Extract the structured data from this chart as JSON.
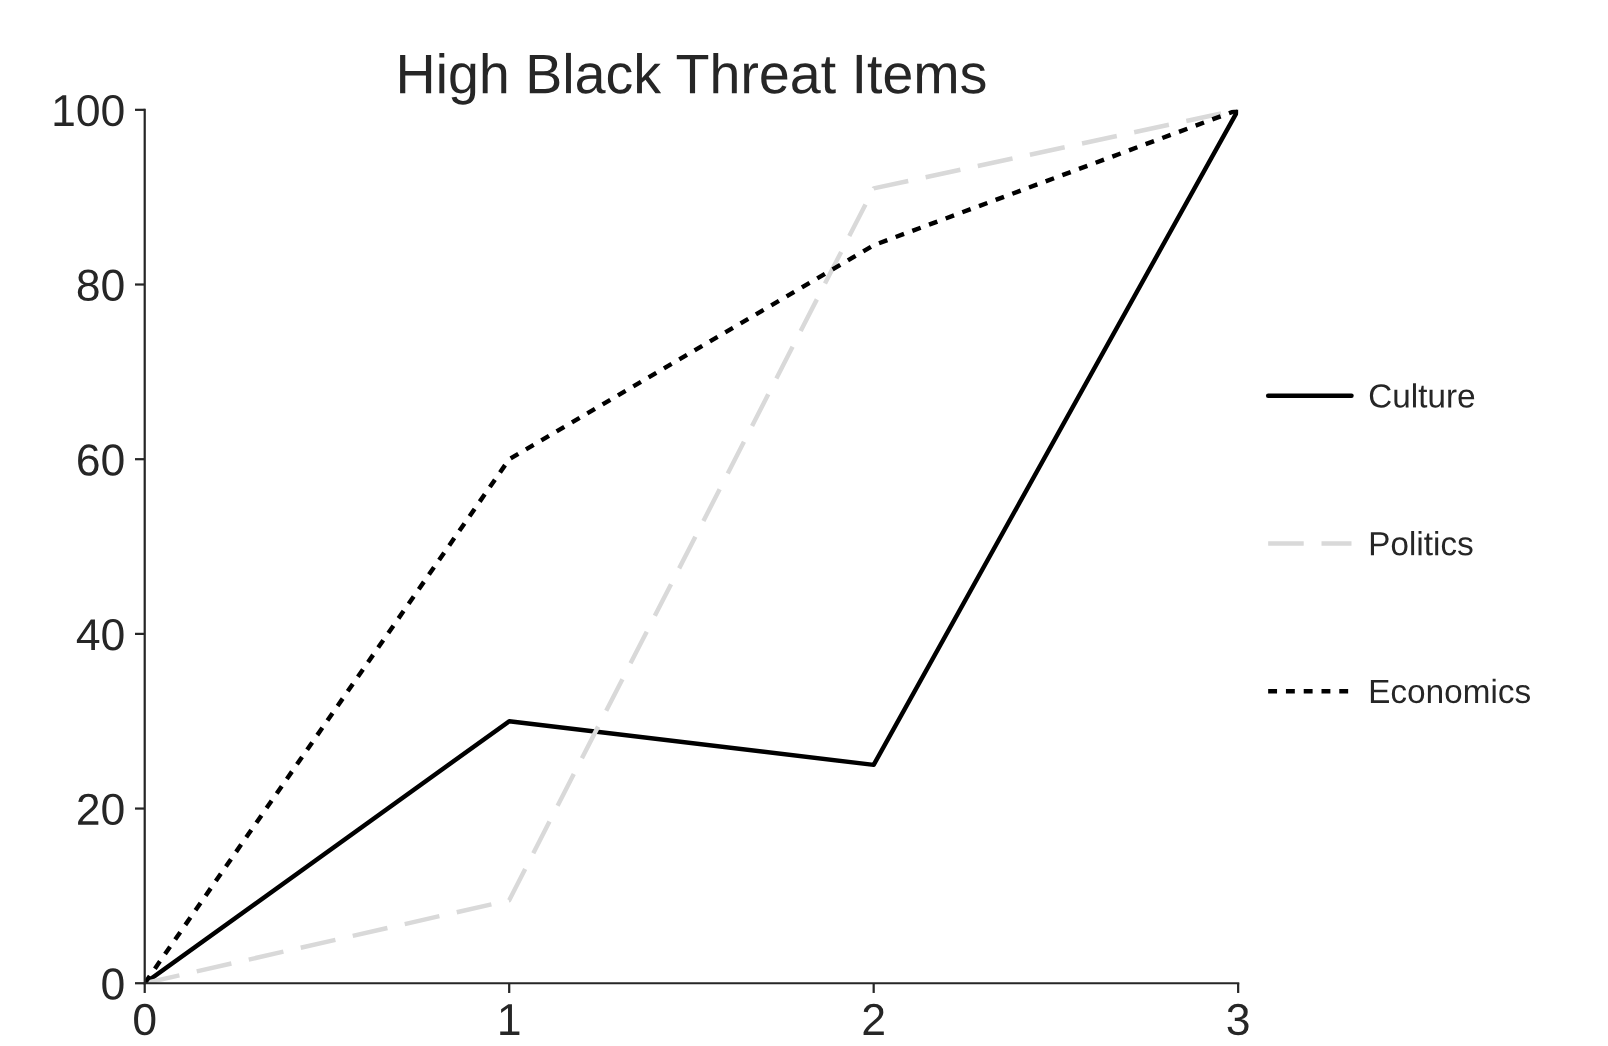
{
  "chart_data": {
    "type": "line",
    "title": "High Black Threat Items",
    "x": [
      0,
      1,
      2,
      3
    ],
    "series": [
      {
        "name": "Culture",
        "color": "#000000",
        "line_style": "solid",
        "values": [
          0,
          30,
          25,
          100
        ]
      },
      {
        "name": "Politics",
        "color": "#d9d9d9",
        "line_style": "dashed",
        "values": [
          0,
          9.5,
          91,
          100
        ]
      },
      {
        "name": "Economics",
        "color": "#000000",
        "line_style": "dotted",
        "values": [
          0,
          60,
          84.5,
          100
        ]
      }
    ],
    "xlim": [
      0,
      3
    ],
    "xticks": [
      0,
      1,
      2,
      3
    ],
    "ylim": [
      0,
      100
    ],
    "yticks": [
      0,
      20,
      40,
      60,
      80,
      100
    ],
    "grid": false,
    "legend": "right",
    "marker": "none"
  }
}
